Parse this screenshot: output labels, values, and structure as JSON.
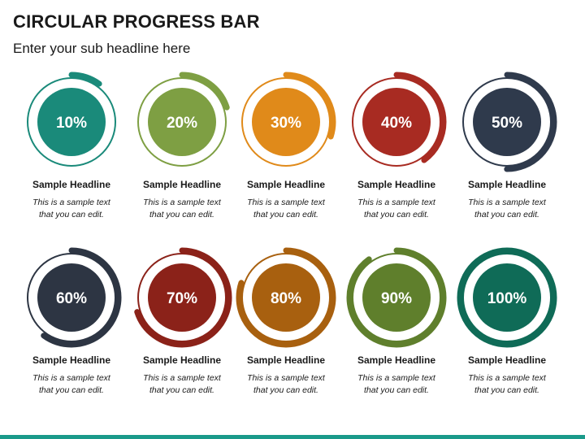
{
  "title": "CIRCULAR PROGRESS BAR",
  "subtitle": "Enter your sub headline here",
  "accent": "#1a9a8a",
  "items": [
    {
      "percent_label": "10%",
      "progress": 0.1,
      "color": "#1a8a7a",
      "headline": "Sample Headline",
      "text": "This is a sample text that you can edit."
    },
    {
      "percent_label": "20%",
      "progress": 0.2,
      "color": "#7e9f43",
      "headline": "Sample Headline",
      "text": "This is a sample text that you can edit."
    },
    {
      "percent_label": "30%",
      "progress": 0.3,
      "color": "#e08a1a",
      "headline": "Sample Headline",
      "text": "This is a sample text that you can edit."
    },
    {
      "percent_label": "40%",
      "progress": 0.4,
      "color": "#a82b22",
      "headline": "Sample Headline",
      "text": "This is a sample text that you can edit."
    },
    {
      "percent_label": "50%",
      "progress": 0.5,
      "color": "#2f3a4c",
      "headline": "Sample Headline",
      "text": "This is a sample text that you can edit."
    },
    {
      "percent_label": "60%",
      "progress": 0.6,
      "color": "#2d3543",
      "headline": "Sample Headline",
      "text": "This is a sample text that you can edit."
    },
    {
      "percent_label": "70%",
      "progress": 0.7,
      "color": "#8b2219",
      "headline": "Sample Headline",
      "text": "This is a sample text that you can edit."
    },
    {
      "percent_label": "80%",
      "progress": 0.8,
      "color": "#a8600f",
      "headline": "Sample Headline",
      "text": "This is a sample text that you can edit."
    },
    {
      "percent_label": "90%",
      "progress": 0.9,
      "color": "#5f7f2c",
      "headline": "Sample Headline",
      "text": "This is a sample text that you can edit."
    },
    {
      "percent_label": "100%",
      "progress": 1.0,
      "color": "#0f6b57",
      "headline": "Sample Headline",
      "text": "This is a sample text that you can edit."
    }
  ]
}
